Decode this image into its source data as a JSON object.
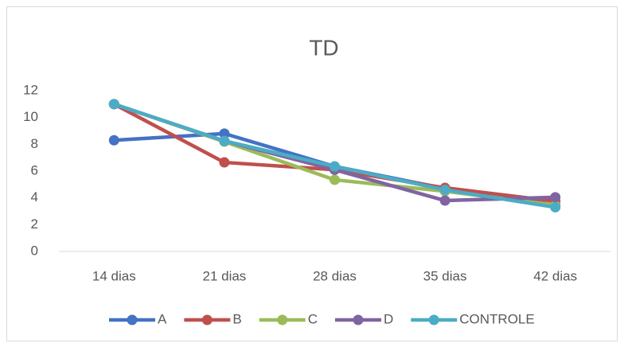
{
  "chart_data": {
    "type": "line",
    "title": "TD",
    "categories": [
      "14 dias",
      "21 dias",
      "28 dias",
      "35 dias",
      "42 dias"
    ],
    "series": [
      {
        "name": "A",
        "color": "#4472c4",
        "values": [
          8.3,
          8.8,
          6.35,
          4.7,
          3.45
        ]
      },
      {
        "name": "B",
        "color": "#c0504d",
        "values": [
          11,
          6.65,
          6.1,
          4.75,
          3.75
        ]
      },
      {
        "name": "C",
        "color": "#9bbb59",
        "values": [
          11,
          8.2,
          5.35,
          4.5,
          3.45
        ]
      },
      {
        "name": "D",
        "color": "#8064a2",
        "values": [
          11,
          8.25,
          6.1,
          3.8,
          4.05
        ]
      },
      {
        "name": "CONTROLE",
        "color": "#4bacc6",
        "values": [
          11,
          8.25,
          6.35,
          4.6,
          3.3
        ]
      }
    ],
    "ylim": [
      0,
      12
    ],
    "yticks": [
      0,
      2,
      4,
      6,
      8,
      10,
      12
    ],
    "grid": false,
    "legend": "bottom"
  }
}
